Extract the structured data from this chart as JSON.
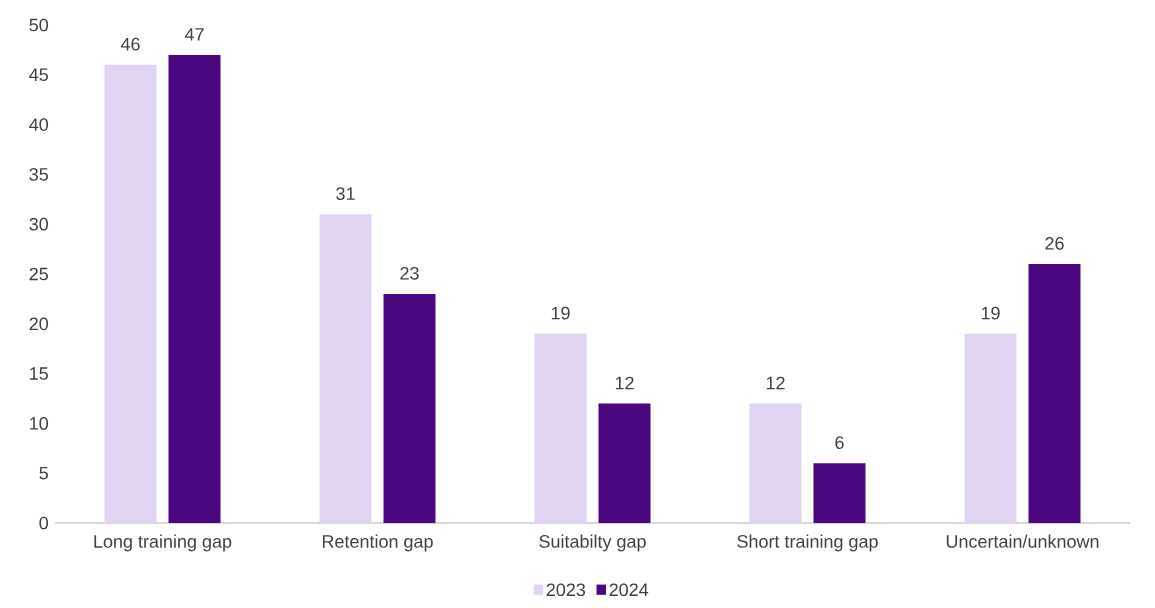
{
  "chart_data": {
    "type": "bar",
    "categories": [
      "Long training gap",
      "Retention gap",
      "Suitabilty gap",
      "Short training gap",
      "Uncertain/unknown"
    ],
    "series": [
      {
        "name": "2023",
        "color": "#e1d3f2",
        "values": [
          46,
          31,
          19,
          12,
          19
        ]
      },
      {
        "name": "2024",
        "color": "#4b0780",
        "values": [
          47,
          23,
          12,
          6,
          26
        ]
      }
    ],
    "ylim": [
      0,
      50
    ],
    "yticks": [
      0,
      5,
      10,
      15,
      20,
      25,
      30,
      35,
      40,
      45,
      50
    ],
    "data_labels": true,
    "legend": "bottom",
    "grid": false
  }
}
